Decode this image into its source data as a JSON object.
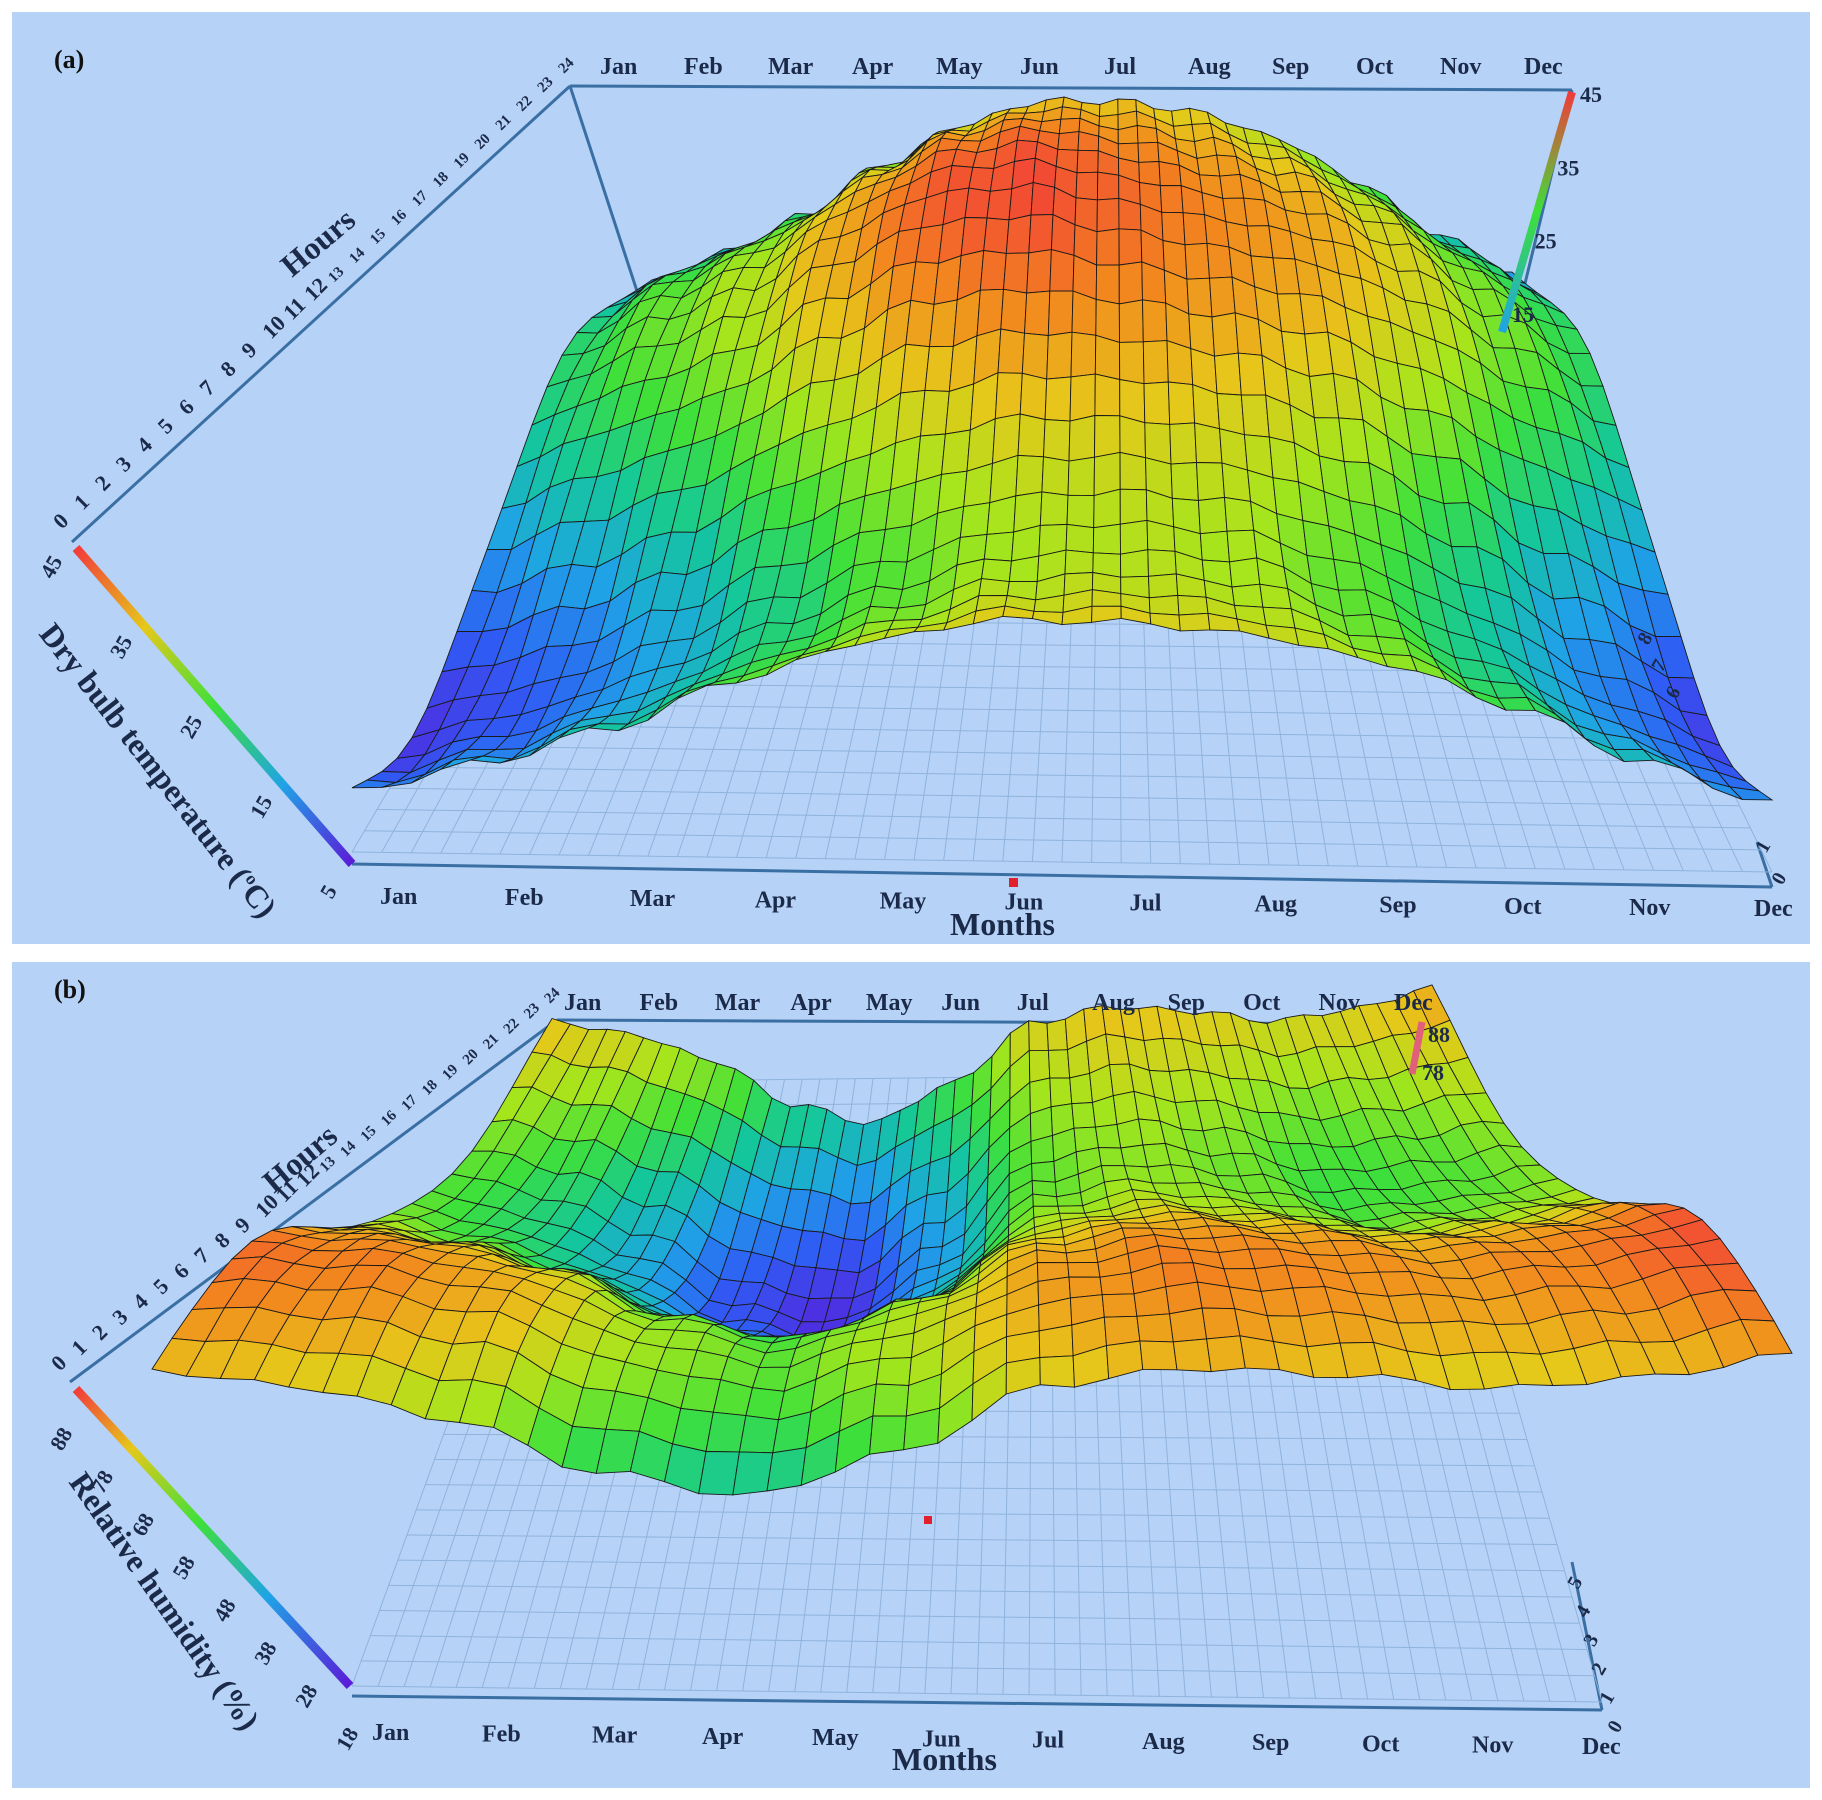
{
  "colors": {
    "background": "#b7d2f7",
    "colormap": [
      "#5b1bd8",
      "#2f5cf5",
      "#1fa3e6",
      "#14c79b",
      "#3ee03a",
      "#a6e51c",
      "#e6c81a",
      "#f2871e",
      "#f23a3a"
    ],
    "axis": "#3a6fa3",
    "mesh": "#1a1a1a"
  },
  "chart_data": [
    {
      "type": "surface3d",
      "panel": "(a)",
      "x_label": "Months",
      "y_label": "Hours",
      "z_label": "Dry bulb temperature (°C)",
      "z_label_parts": [
        "Dry bulb temperature (",
        "o",
        "C)"
      ],
      "months": [
        "Jan",
        "Feb",
        "Mar",
        "Apr",
        "May",
        "Jun",
        "Jul",
        "Aug",
        "Sep",
        "Oct",
        "Nov",
        "Dec"
      ],
      "hours": [
        "0",
        "1",
        "2",
        "3",
        "4",
        "5",
        "6",
        "7",
        "8",
        "9",
        "10",
        "11",
        "12",
        "13",
        "14",
        "15",
        "16",
        "17",
        "18",
        "19",
        "20",
        "21",
        "22",
        "23",
        "24"
      ],
      "depth_ticks": [
        "8",
        "7",
        "6",
        "1",
        "0"
      ],
      "colorbar_left": [
        "45",
        "35",
        "25",
        "15",
        "5"
      ],
      "colorbar_right": [
        "45",
        "35",
        "25",
        "15"
      ],
      "zlim": [
        5,
        45
      ],
      "monthly_values": {
        "min": [
          7,
          10,
          15,
          21,
          26,
          30,
          31,
          30,
          26,
          20,
          13,
          8
        ],
        "max": [
          22,
          27,
          31,
          38,
          43,
          44,
          42,
          40,
          38,
          34,
          28,
          23
        ]
      }
    },
    {
      "type": "surface3d",
      "panel": "(b)",
      "x_label": "Months",
      "y_label": "Hours",
      "z_label": "Relative humidity (%)",
      "months": [
        "Jan",
        "Feb",
        "Mar",
        "Apr",
        "May",
        "Jun",
        "Jul",
        "Aug",
        "Sep",
        "Oct",
        "Nov",
        "Dec"
      ],
      "hours": [
        "0",
        "1",
        "2",
        "3",
        "4",
        "5",
        "6",
        "7",
        "8",
        "9",
        "10",
        "11",
        "12",
        "13",
        "14",
        "15",
        "16",
        "17",
        "18",
        "19",
        "20",
        "21",
        "22",
        "23",
        "24"
      ],
      "depth_ticks": [
        "5",
        "4",
        "3",
        "2",
        "1",
        "0"
      ],
      "colorbar_left": [
        "88",
        "78",
        "68",
        "58",
        "48",
        "38",
        "28",
        "18"
      ],
      "colorbar_right": [
        "88",
        "78"
      ],
      "zlim": [
        18,
        88
      ],
      "monthly_values": {
        "min": [
          55,
          48,
          38,
          25,
          20,
          34,
          56,
          60,
          57,
          52,
          54,
          58
        ],
        "max": [
          82,
          80,
          74,
          62,
          56,
          64,
          76,
          80,
          79,
          77,
          80,
          86
        ]
      }
    }
  ]
}
